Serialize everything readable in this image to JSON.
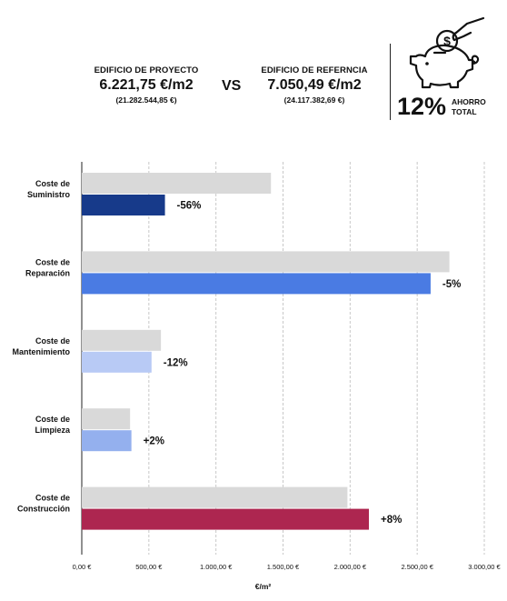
{
  "header": {
    "project": {
      "label": "EDIFICIO DE PROYECTO",
      "value": "6.221,75 €/m2",
      "total": "(21.282.544,85 €)"
    },
    "vs": "VS",
    "reference": {
      "label": "EDIFICIO DE REFERNCIA",
      "value": "7.050,49 €/m2",
      "total": "(24.117.382,69 €)"
    },
    "savings": {
      "percent": "12%",
      "label_line1": "AHORRO",
      "label_line2": "TOTAL"
    }
  },
  "chart_data": {
    "type": "bar",
    "orientation": "horizontal",
    "categories": [
      [
        "Coste de",
        "Suministro"
      ],
      [
        "Coste de",
        "Reparación"
      ],
      [
        "Coste de",
        "Mantenimiento"
      ],
      [
        "Coste de",
        "Limpieza"
      ],
      [
        "Coste de",
        "Construcción"
      ]
    ],
    "series": [
      {
        "values": [
          1410,
          2740,
          590,
          360,
          1980
        ],
        "color": "#d9d9d9"
      },
      {
        "values": [
          620,
          2600,
          520,
          370,
          2140
        ],
        "colors": [
          "#173a8a",
          "#4a7be3",
          "#b8caf5",
          "#94b0ee",
          "#ad2650"
        ]
      }
    ],
    "annotations": [
      "-56%",
      "-5%",
      "-12%",
      "+2%",
      "+8%"
    ],
    "xlabel": "€/m²",
    "xlim": [
      0,
      3000
    ],
    "xticks": [
      0,
      500,
      1000,
      1500,
      2000,
      2500,
      3000
    ],
    "xtick_labels": [
      "0,00 €",
      "500,00 €",
      "1.000,00 €",
      "1.500,00 €",
      "2.000,00 €",
      "2.500,00 €",
      "3.000,00 €"
    ],
    "grid": "vertical dashed"
  }
}
